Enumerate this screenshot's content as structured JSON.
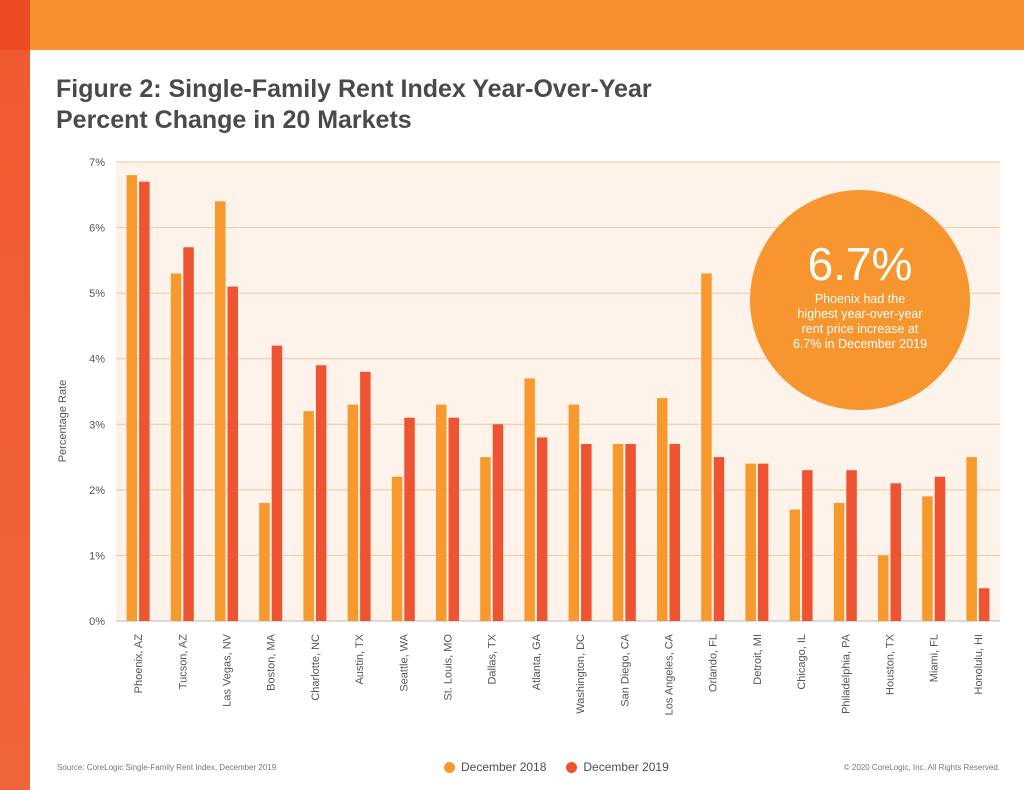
{
  "header": {
    "title_line1": "Figure 2: Single-Family Rent Index Year-Over-Year",
    "title_line2": "Percent Change in 20 Markets"
  },
  "callout": {
    "value": "6.7%",
    "text_lines": [
      "Phoenix had the",
      "highest year-over-year",
      "rent price increase at",
      "6.7% in December 2019"
    ]
  },
  "footer": {
    "source": "Source: CoreLogic Single-Family Rent Index, December 2019",
    "copyright": "© 2020 CoreLogic, Inc. All Rights Reserved."
  },
  "colors": {
    "dec2018": "#f7992c",
    "dec2019": "#ee5431",
    "plot_bg": "#fdf3ea",
    "grid": "#f2c79a",
    "callout": "#f7952e"
  },
  "chart_data": {
    "type": "bar",
    "ylabel": "Percentage Rate",
    "ylim": [
      0,
      7
    ],
    "yticks": [
      "0%",
      "1%",
      "2%",
      "3%",
      "4%",
      "5%",
      "6%",
      "7%"
    ],
    "legend_position": "bottom",
    "grid": true,
    "categories": [
      "Phoenix, AZ",
      "Tucson, AZ",
      "Las Vegas, NV",
      "Boston, MA",
      "Charlotte, NC",
      "Austin, TX",
      "Seattle, WA",
      "St. Louis, MO",
      "Dallas, TX",
      "Atlanta, GA",
      "Washington, DC",
      "San Diego, CA",
      "Los Angeles, CA",
      "Orlando, FL",
      "Detroit, MI",
      "Chicago, IL",
      "Philadelphia, PA",
      "Houston, TX",
      "Miami, FL",
      "Honolulu, HI"
    ],
    "series": [
      {
        "name": "December 2018",
        "values": [
          6.8,
          5.3,
          6.4,
          1.8,
          3.2,
          3.3,
          2.2,
          3.3,
          2.5,
          3.7,
          3.3,
          2.7,
          3.4,
          5.3,
          2.4,
          1.7,
          1.8,
          1.0,
          1.9,
          2.5
        ]
      },
      {
        "name": "December 2019",
        "values": [
          6.7,
          5.7,
          5.1,
          4.2,
          3.9,
          3.8,
          3.1,
          3.1,
          3.0,
          2.8,
          2.7,
          2.7,
          2.7,
          2.5,
          2.4,
          2.3,
          2.3,
          2.1,
          2.2,
          0.5
        ]
      }
    ]
  }
}
